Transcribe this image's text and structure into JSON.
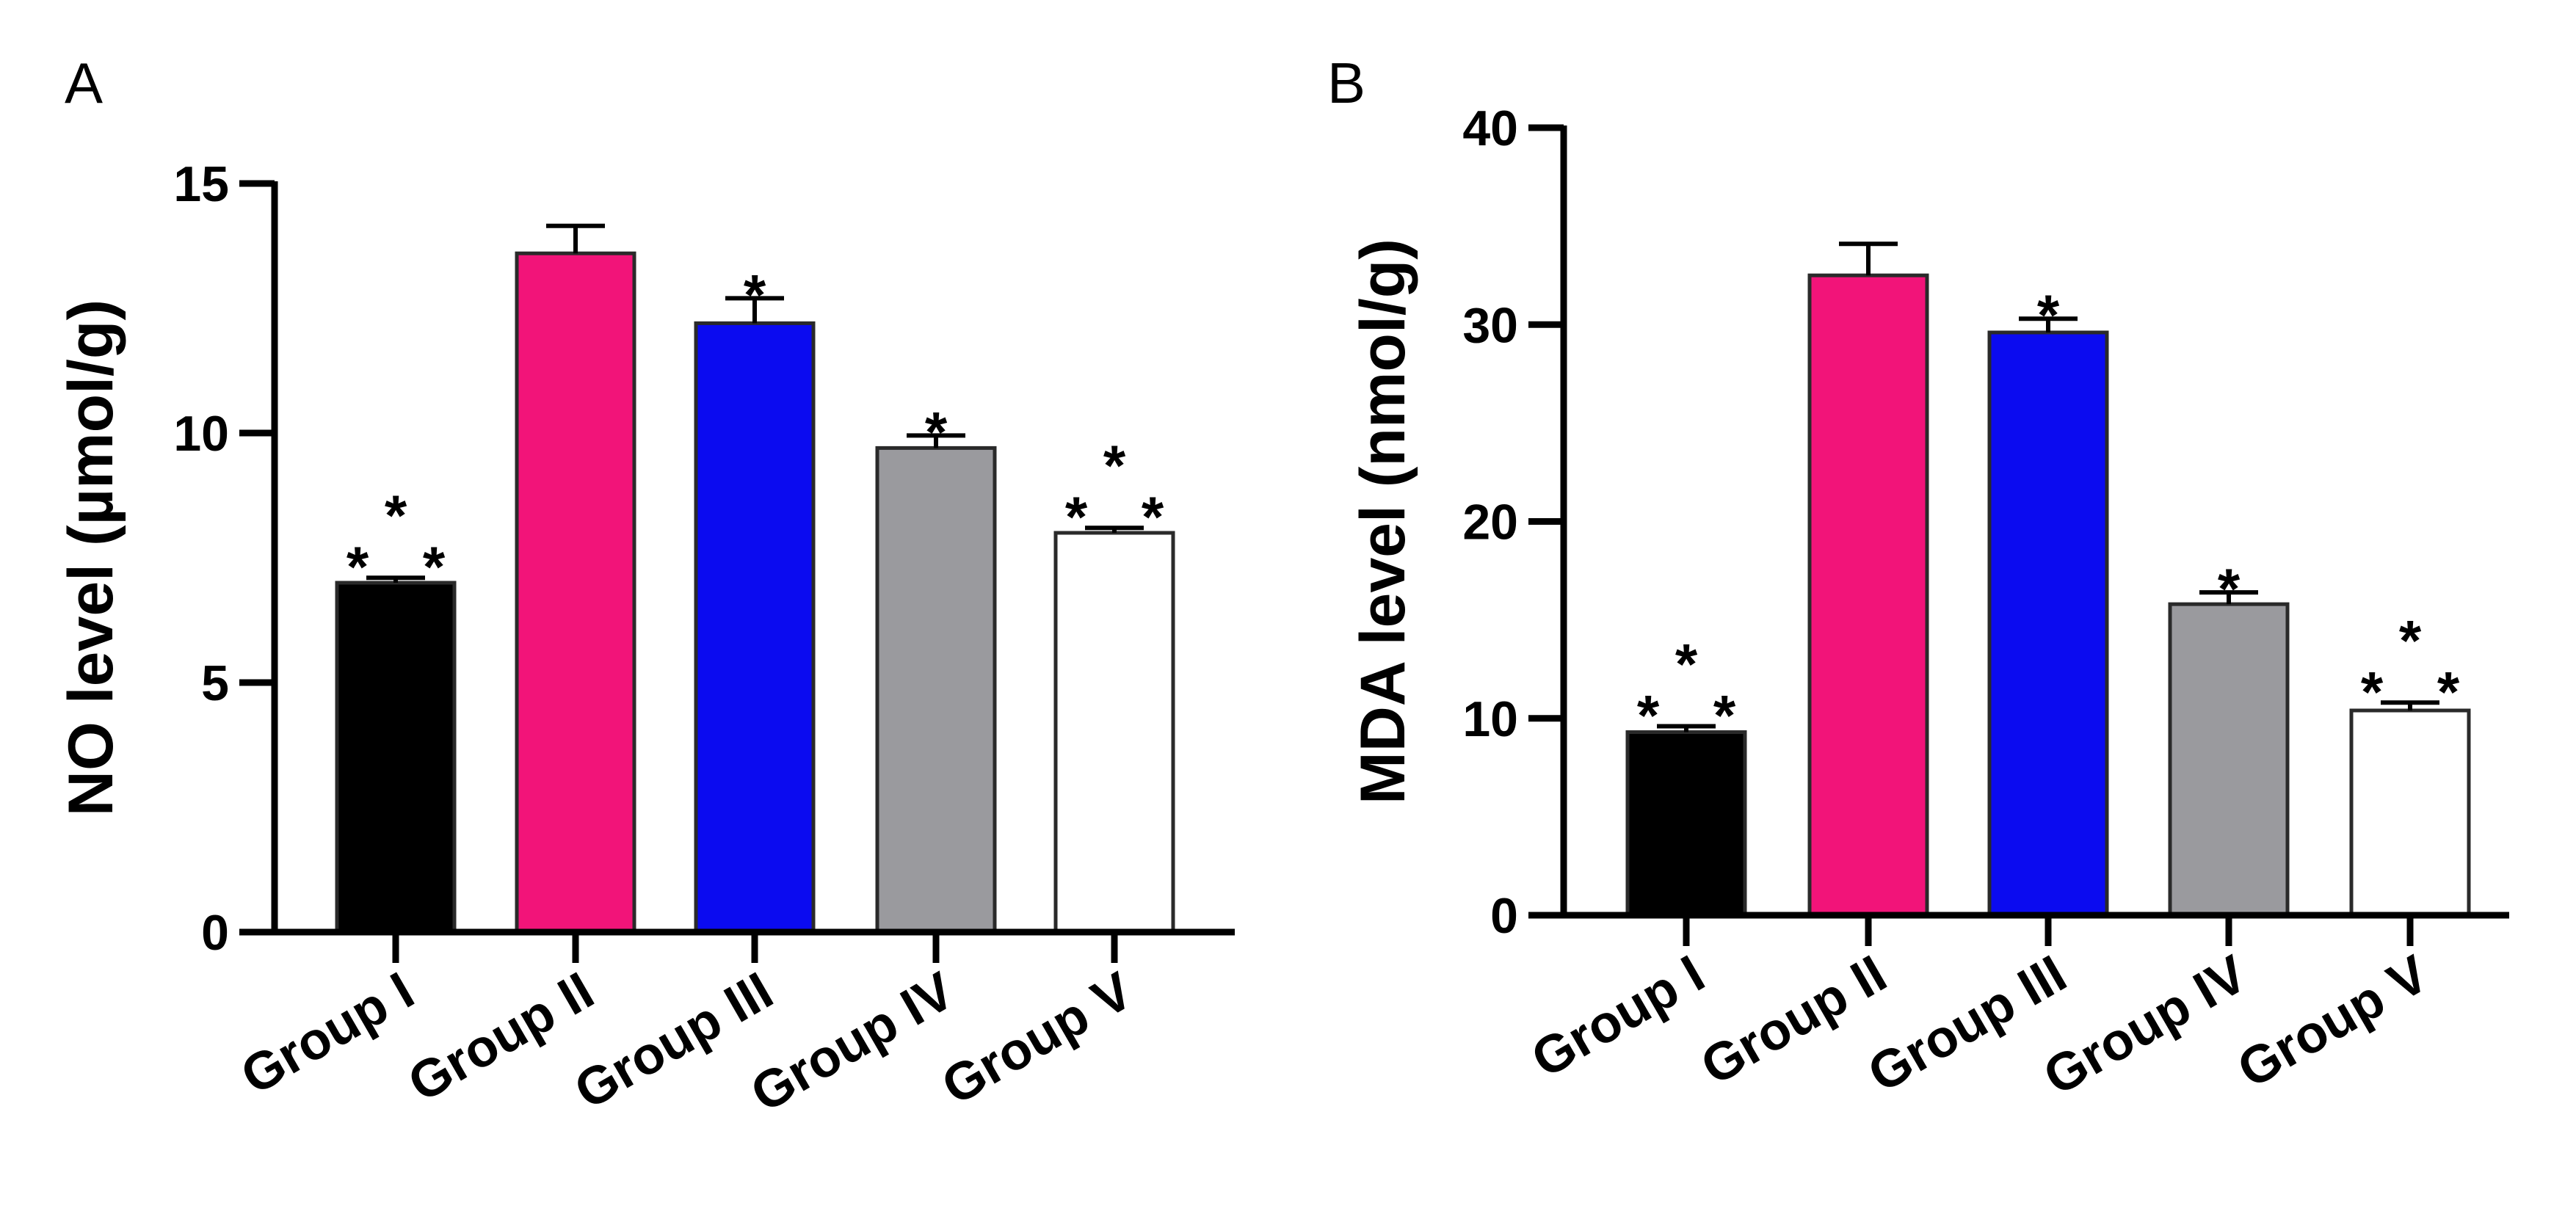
{
  "chart_data": [
    {
      "panel": "A",
      "type": "bar",
      "categories": [
        "Group I",
        "Group II",
        "Group III",
        "Group IV",
        "Group V"
      ],
      "values": [
        7.0,
        13.6,
        12.2,
        9.7,
        8.0
      ],
      "errors": [
        0.1,
        0.55,
        0.5,
        0.25,
        0.1
      ],
      "colors": [
        "#000000",
        "#f21479",
        "#0b0bf0",
        "#9a9a9e",
        "#ffffff"
      ],
      "significance": [
        "* * *",
        "",
        "*",
        "*",
        "* * *"
      ],
      "ylabel": "NO level (µmol/g)",
      "xlabel": "",
      "ylim": [
        0,
        15
      ],
      "yticks": [
        0,
        5,
        10,
        15
      ]
    },
    {
      "panel": "B",
      "type": "bar",
      "categories": [
        "Group I",
        "Group II",
        "Group III",
        "Group IV",
        "Group V"
      ],
      "values": [
        9.3,
        32.5,
        29.6,
        15.8,
        10.4
      ],
      "errors": [
        0.3,
        1.6,
        0.7,
        0.6,
        0.4
      ],
      "colors": [
        "#000000",
        "#f21479",
        "#0b0bf0",
        "#9a9a9e",
        "#ffffff"
      ],
      "significance": [
        "* * *",
        "",
        "*",
        "*",
        "* * *"
      ],
      "ylabel": "MDA level (nmol/g)",
      "xlabel": "",
      "ylim": [
        0,
        40
      ],
      "yticks": [
        0,
        10,
        20,
        30,
        40
      ]
    }
  ]
}
